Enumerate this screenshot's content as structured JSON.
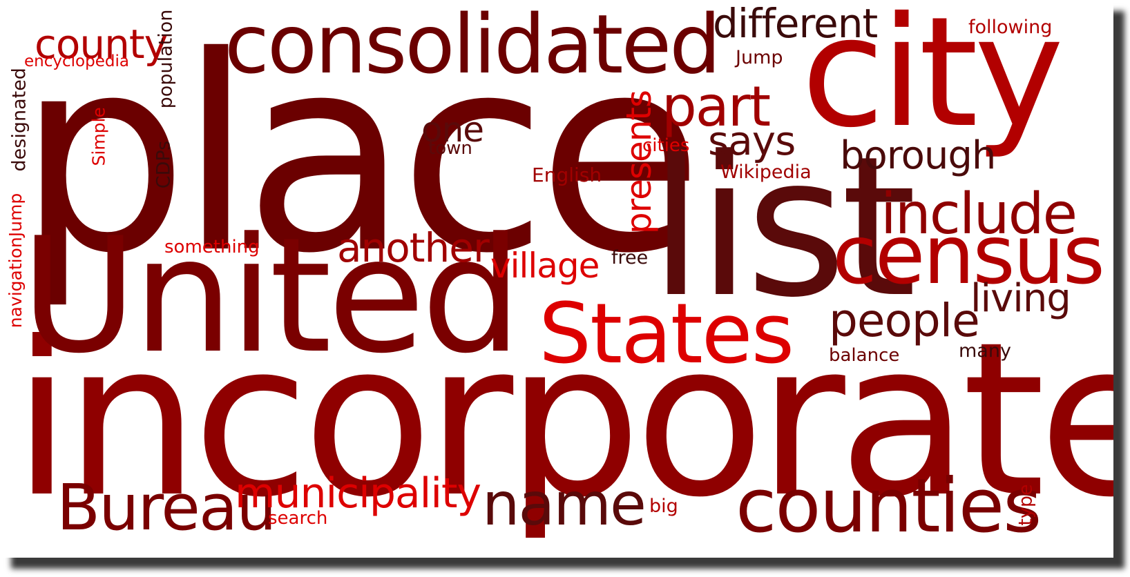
{
  "colors": {
    "darkest": "#5a0a0a",
    "dark": "#7a0000",
    "mid": "#8f0000",
    "bright": "#b20000",
    "red": "#dd0000"
  },
  "words": [
    {
      "text": "place",
      "color": "#6b0000",
      "orientation": "horizontal"
    },
    {
      "text": "incorporated",
      "color": "#8f0000",
      "orientation": "horizontal"
    },
    {
      "text": "United",
      "color": "#7a0000",
      "orientation": "horizontal"
    },
    {
      "text": "list",
      "color": "#5a0a0a",
      "orientation": "horizontal"
    },
    {
      "text": "city",
      "color": "#b20000",
      "orientation": "horizontal"
    },
    {
      "text": "consolidated",
      "color": "#6b0000",
      "orientation": "horizontal"
    },
    {
      "text": "States",
      "color": "#dd0000",
      "orientation": "horizontal"
    },
    {
      "text": "census",
      "color": "#b20000",
      "orientation": "horizontal"
    },
    {
      "text": "counties",
      "color": "#7a0000",
      "orientation": "horizontal"
    },
    {
      "text": "include",
      "color": "#8f0000",
      "orientation": "horizontal"
    },
    {
      "text": "Bureau",
      "color": "#7a0000",
      "orientation": "horizontal"
    },
    {
      "text": "name",
      "color": "#5a0a0a",
      "orientation": "horizontal"
    },
    {
      "text": "municipality",
      "color": "#dd0000",
      "orientation": "horizontal"
    },
    {
      "text": "part",
      "color": "#a00000",
      "orientation": "horizontal"
    },
    {
      "text": "people",
      "color": "#5a0a0a",
      "orientation": "horizontal"
    },
    {
      "text": "another",
      "color": "#a00000",
      "orientation": "horizontal"
    },
    {
      "text": "different",
      "color": "#3a0a0a",
      "orientation": "horizontal"
    },
    {
      "text": "borough",
      "color": "#4a0a0a",
      "orientation": "horizontal"
    },
    {
      "text": "county",
      "color": "#b20000",
      "orientation": "horizontal"
    },
    {
      "text": "says",
      "color": "#5a0a0a",
      "orientation": "horizontal"
    },
    {
      "text": "living",
      "color": "#5a0a0a",
      "orientation": "horizontal"
    },
    {
      "text": "village",
      "color": "#dd0000",
      "orientation": "horizontal"
    },
    {
      "text": "one",
      "color": "#5a0a0a",
      "orientation": "horizontal"
    },
    {
      "text": "presents",
      "color": "#dd0000",
      "orientation": "vertical"
    },
    {
      "text": "following",
      "color": "#b20000",
      "orientation": "horizontal"
    },
    {
      "text": "encyclopedia",
      "color": "#dd0000",
      "orientation": "horizontal"
    },
    {
      "text": "Jump",
      "color": "#6b0000",
      "orientation": "horizontal"
    },
    {
      "text": "English",
      "color": "#a00000",
      "orientation": "horizontal"
    },
    {
      "text": "Wikipedia",
      "color": "#a00000",
      "orientation": "horizontal"
    },
    {
      "text": "cities",
      "color": "#dd0000",
      "orientation": "horizontal"
    },
    {
      "text": "town",
      "color": "#5a0a0a",
      "orientation": "horizontal"
    },
    {
      "text": "something",
      "color": "#dd0000",
      "orientation": "horizontal"
    },
    {
      "text": "free",
      "color": "#3a0a0a",
      "orientation": "horizontal"
    },
    {
      "text": "balance",
      "color": "#6b0000",
      "orientation": "horizontal"
    },
    {
      "text": "many",
      "color": "#3a0a0a",
      "orientation": "horizontal"
    },
    {
      "text": "search",
      "color": "#dd0000",
      "orientation": "horizontal"
    },
    {
      "text": "big",
      "color": "#b20000",
      "orientation": "horizontal"
    },
    {
      "text": "type",
      "color": "#b20000",
      "orientation": "vertical"
    },
    {
      "text": "population",
      "color": "#3a0a0a",
      "orientation": "vertical"
    },
    {
      "text": "designated",
      "color": "#3a0a0a",
      "orientation": "vertical"
    },
    {
      "text": "Simple",
      "color": "#dd0000",
      "orientation": "vertical"
    },
    {
      "text": "CDPs",
      "color": "#3a0a0a",
      "orientation": "vertical"
    },
    {
      "text": "navigationJump",
      "color": "#dd0000",
      "orientation": "vertical"
    }
  ]
}
